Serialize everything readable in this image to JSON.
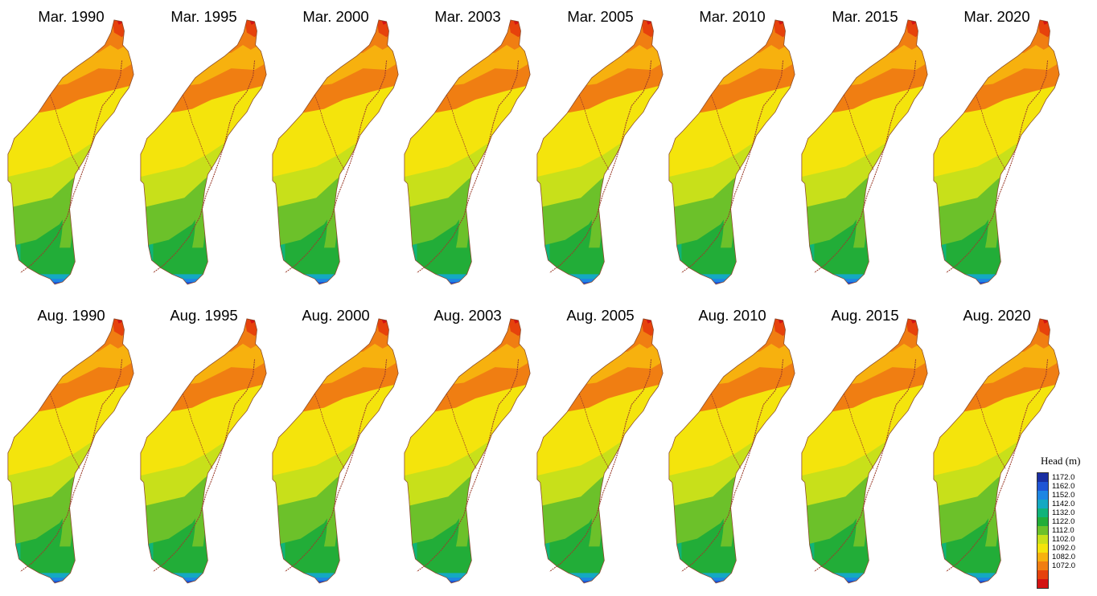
{
  "panels": [
    {
      "label": "Mar. 1990"
    },
    {
      "label": "Mar. 1995"
    },
    {
      "label": "Mar. 2000"
    },
    {
      "label": "Mar. 2003"
    },
    {
      "label": "Mar. 2005"
    },
    {
      "label": "Mar. 2010"
    },
    {
      "label": "Mar. 2015"
    },
    {
      "label": "Mar. 2020"
    },
    {
      "label": "Aug. 1990"
    },
    {
      "label": "Aug. 1995"
    },
    {
      "label": "Aug. 2000"
    },
    {
      "label": "Aug. 2003"
    },
    {
      "label": "Aug. 2005"
    },
    {
      "label": "Aug. 2010"
    },
    {
      "label": "Aug. 2015"
    },
    {
      "label": "Aug. 2020"
    }
  ],
  "legend": {
    "title": "Head (m)",
    "entries": [
      {
        "label": "1172.0",
        "color": "#1a2fa3"
      },
      {
        "label": "1162.0",
        "color": "#1f55d6"
      },
      {
        "label": "1152.0",
        "color": "#1e86e3"
      },
      {
        "label": "1142.0",
        "color": "#14a9c2"
      },
      {
        "label": "1132.0",
        "color": "#10b37a"
      },
      {
        "label": "1122.0",
        "color": "#22ad38"
      },
      {
        "label": "1112.0",
        "color": "#6cc12a"
      },
      {
        "label": "1102.0",
        "color": "#c8e01a"
      },
      {
        "label": "1092.0",
        "color": "#f4e40c"
      },
      {
        "label": "1082.0",
        "color": "#f7b10e"
      },
      {
        "label": "1072.0",
        "color": "#f07e12"
      },
      {
        "label": "",
        "color": "#e6420c"
      },
      {
        "label": "",
        "color": "#d31313"
      }
    ]
  },
  "river_color": "#9a3b2a"
}
